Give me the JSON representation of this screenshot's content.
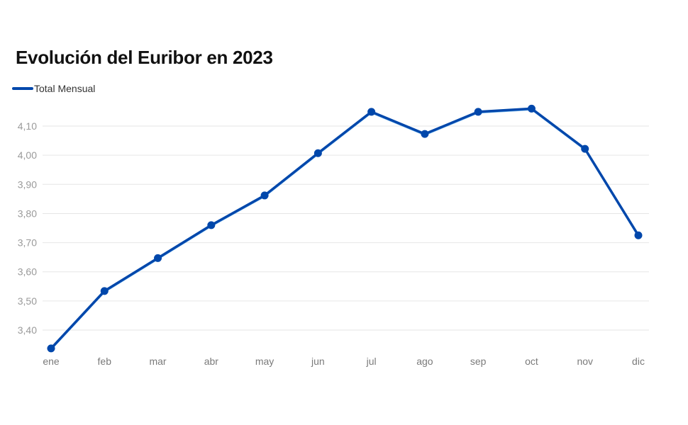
{
  "header": {
    "title": "Evolución del Euribor en 2023"
  },
  "colors": {
    "series": "#0047ab",
    "series_shadow": "#1e88e5",
    "grid": "#e6e6e6"
  },
  "chart_data": {
    "type": "line",
    "title": "Evolución del Euribor en 2023",
    "xlabel": "",
    "ylabel": "",
    "categories": [
      "ene",
      "feb",
      "mar",
      "abr",
      "may",
      "jun",
      "jul",
      "ago",
      "sep",
      "oct",
      "nov",
      "dic"
    ],
    "y_ticks": [
      "3,40",
      "3,50",
      "3,60",
      "3,70",
      "3,80",
      "3,90",
      "4,00",
      "4,10"
    ],
    "ylim": [
      3.33,
      4.165
    ],
    "grid": true,
    "legend_position": "top-left",
    "series": [
      {
        "name": "Total Mensual",
        "values": [
          3.337,
          3.534,
          3.647,
          3.76,
          3.862,
          4.007,
          4.149,
          4.073,
          4.149,
          4.16,
          4.022,
          3.725
        ]
      }
    ]
  }
}
